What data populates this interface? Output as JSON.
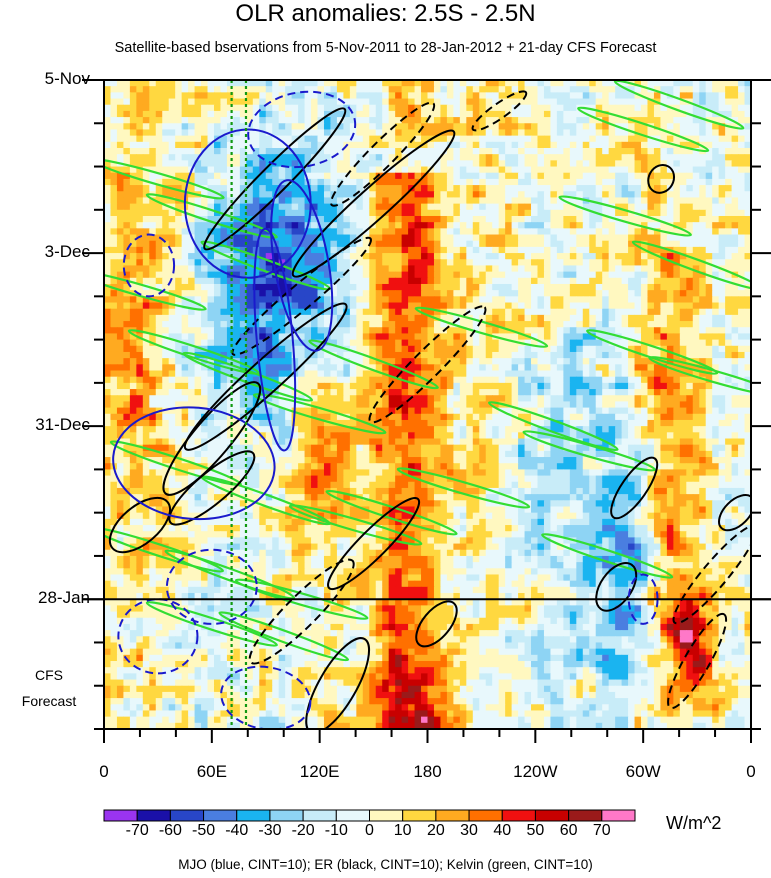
{
  "chart_data": {
    "type": "heatmap",
    "title": "OLR anomalies: 2.5S - 2.5N",
    "subtitle": "Satellite-based bservations from 5-Nov-2011 to 28-Jan-2012 + 21-day CFS Forecast",
    "x_tick_labels": [
      "0",
      "60E",
      "120E",
      "180",
      "120W",
      "60W",
      "0"
    ],
    "x_ticks_deg": [
      0,
      60,
      120,
      180,
      240,
      300,
      360
    ],
    "x_range_deg": [
      0,
      360
    ],
    "y_tick_labels": [
      "5-Nov",
      "3-Dec",
      "31-Dec",
      "28-Jan"
    ],
    "y_ticks_day": [
      0,
      28,
      56,
      84
    ],
    "y_range_day": [
      0,
      105
    ],
    "observation_end_day": 84,
    "forecast_label_line1": "CFS",
    "forecast_label_line2": "Forecast",
    "colorbar": {
      "levels": [
        -70,
        -60,
        -50,
        -40,
        -30,
        -20,
        -10,
        0,
        10,
        20,
        30,
        40,
        50,
        60,
        70
      ],
      "level_labels": [
        "-70",
        "-60",
        "-50",
        "-40",
        "-30",
        "-20",
        "-10",
        "0",
        "10",
        "20",
        "30",
        "40",
        "50",
        "60",
        "70"
      ],
      "colors": [
        "#9a34f0",
        "#1a10a8",
        "#2846c8",
        "#4a7ee0",
        "#1ab4f0",
        "#8ed4f4",
        "#c8ecf8",
        "#e8f8fc",
        "#fff8c0",
        "#ffd840",
        "#ffaa20",
        "#ff7000",
        "#f01010",
        "#c80000",
        "#9a1a1a",
        "#ff78c8"
      ],
      "units": "W/m^2"
    },
    "overlay_contours": "MJO (blue, CINT=10); ER (black, CINT=10); Kelvin (green, CINT=10)",
    "features": [
      {
        "name": "dateline-positive-band",
        "lon_start": 150,
        "lon_end": 185,
        "day_start": 15,
        "day_end": 105,
        "value": 40
      },
      {
        "name": "eastern-pacific-dry",
        "lon_start": 190,
        "lon_end": 235,
        "day_start": 0,
        "day_end": 105,
        "value": 8
      },
      {
        "name": "indian-ocean-convection",
        "lon_start": 60,
        "lon_end": 130,
        "day_start": 10,
        "day_end": 55,
        "value": -50
      },
      {
        "name": "atlantic-positive",
        "lon_start": 295,
        "lon_end": 335,
        "day_start": 20,
        "day_end": 105,
        "value": 30
      }
    ]
  }
}
